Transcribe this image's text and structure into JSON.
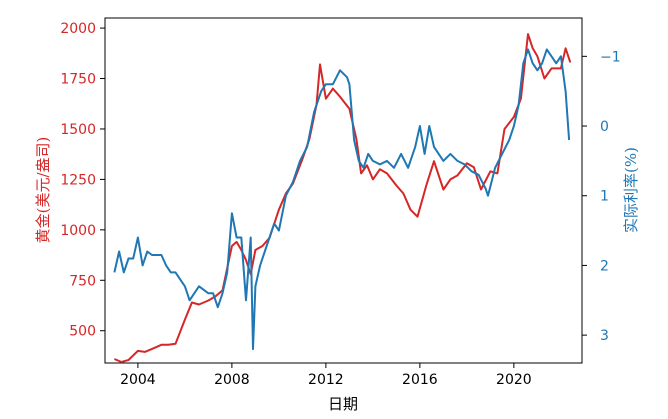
{
  "chart_data": {
    "type": "line",
    "xlabel": "日期",
    "ylabel_left": "黄金(美元/盎司)",
    "ylabel_right": "实际利率(%)",
    "xlim": [
      2002.6,
      2022.9
    ],
    "ylim_left": [
      340,
      2050
    ],
    "ylim_right_inverted": [
      3.4,
      -1.55
    ],
    "xticks": [
      2004,
      2008,
      2012,
      2016,
      2020
    ],
    "yticks_left": [
      500,
      750,
      1000,
      1250,
      1500,
      1750,
      2000
    ],
    "yticks_right": [
      -1,
      0,
      1,
      2,
      3
    ],
    "ytick_labels_right": [
      "−1",
      "0",
      "1",
      "2",
      "3"
    ],
    "grid": false,
    "colors": {
      "gold": "#d62728",
      "rate": "#1f77b4"
    },
    "series": [
      {
        "axis": "left",
        "x": [
          2003.0,
          2003.3,
          2003.6,
          2004.0,
          2004.3,
          2004.6,
          2005.0,
          2005.3,
          2005.6,
          2006.0,
          2006.3,
          2006.6,
          2007.0,
          2007.3,
          2007.6,
          2008.0,
          2008.2,
          2008.4,
          2008.6,
          2008.8,
          2009.0,
          2009.3,
          2009.6,
          2010.0,
          2010.3,
          2010.6,
          2011.0,
          2011.3,
          2011.6,
          2011.75,
          2012.0,
          2012.3,
          2012.6,
          2013.0,
          2013.3,
          2013.5,
          2013.75,
          2014.0,
          2014.3,
          2014.6,
          2015.0,
          2015.3,
          2015.6,
          2015.9,
          2016.3,
          2016.6,
          2017.0,
          2017.3,
          2017.6,
          2018.0,
          2018.3,
          2018.6,
          2019.0,
          2019.3,
          2019.6,
          2020.0,
          2020.3,
          2020.6,
          2020.8,
          2021.0,
          2021.3,
          2021.6,
          2022.0,
          2022.2,
          2022.4
        ],
        "y": [
          360,
          345,
          355,
          400,
          395,
          410,
          430,
          430,
          435,
          555,
          640,
          630,
          650,
          670,
          700,
          920,
          940,
          900,
          850,
          780,
          900,
          920,
          960,
          1100,
          1180,
          1230,
          1350,
          1450,
          1620,
          1820,
          1650,
          1700,
          1660,
          1600,
          1450,
          1280,
          1320,
          1250,
          1300,
          1280,
          1220,
          1180,
          1100,
          1065,
          1230,
          1340,
          1200,
          1250,
          1270,
          1330,
          1310,
          1200,
          1290,
          1280,
          1500,
          1560,
          1650,
          1970,
          1900,
          1860,
          1750,
          1800,
          1800,
          1900,
          1830
        ]
      },
      {
        "axis": "right",
        "x": [
          2003.0,
          2003.2,
          2003.4,
          2003.6,
          2003.8,
          2004.0,
          2004.2,
          2004.4,
          2004.6,
          2004.8,
          2005.0,
          2005.2,
          2005.4,
          2005.6,
          2005.8,
          2006.0,
          2006.2,
          2006.4,
          2006.6,
          2006.8,
          2007.0,
          2007.2,
          2007.4,
          2007.6,
          2007.8,
          2008.0,
          2008.2,
          2008.4,
          2008.6,
          2008.8,
          2008.9,
          2009.0,
          2009.2,
          2009.4,
          2009.6,
          2009.8,
          2010.0,
          2010.3,
          2010.6,
          2010.9,
          2011.2,
          2011.5,
          2011.8,
          2012.0,
          2012.3,
          2012.6,
          2012.9,
          2013.0,
          2013.2,
          2013.4,
          2013.6,
          2013.8,
          2014.0,
          2014.3,
          2014.6,
          2014.9,
          2015.2,
          2015.5,
          2015.8,
          2016.0,
          2016.2,
          2016.4,
          2016.6,
          2016.8,
          2017.0,
          2017.3,
          2017.6,
          2017.9,
          2018.2,
          2018.5,
          2018.8,
          2018.9,
          2019.2,
          2019.5,
          2019.8,
          2020.0,
          2020.2,
          2020.4,
          2020.6,
          2020.8,
          2021.0,
          2021.2,
          2021.4,
          2021.6,
          2021.8,
          2022.0,
          2022.2,
          2022.35
        ],
        "y": [
          2.1,
          1.8,
          2.1,
          1.9,
          1.9,
          1.6,
          2.0,
          1.8,
          1.85,
          1.85,
          1.85,
          2.0,
          2.1,
          2.1,
          2.2,
          2.3,
          2.5,
          2.4,
          2.3,
          2.35,
          2.4,
          2.4,
          2.6,
          2.4,
          2.1,
          1.25,
          1.6,
          1.6,
          2.5,
          1.6,
          3.2,
          2.3,
          2.0,
          1.8,
          1.6,
          1.4,
          1.5,
          1.0,
          0.8,
          0.5,
          0.3,
          -0.2,
          -0.5,
          -0.6,
          -0.6,
          -0.8,
          -0.7,
          -0.6,
          0.2,
          0.5,
          0.6,
          0.4,
          0.5,
          0.55,
          0.5,
          0.6,
          0.4,
          0.6,
          0.3,
          0.0,
          0.4,
          0.0,
          0.3,
          0.4,
          0.5,
          0.4,
          0.5,
          0.55,
          0.65,
          0.7,
          0.9,
          1.0,
          0.6,
          0.4,
          0.2,
          0.0,
          -0.3,
          -0.9,
          -1.1,
          -0.9,
          -0.8,
          -0.9,
          -1.1,
          -1.0,
          -0.9,
          -1.0,
          -0.5,
          0.2
        ]
      }
    ]
  }
}
